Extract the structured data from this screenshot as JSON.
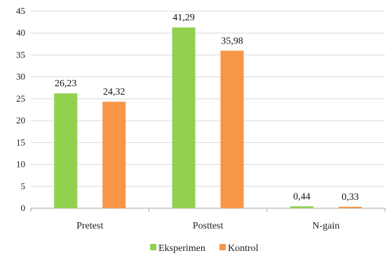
{
  "chart_data": {
    "type": "bar",
    "title": "",
    "xlabel": "",
    "ylabel": "",
    "categories": [
      "Pretest",
      "Posttest",
      "N-gain"
    ],
    "series": [
      {
        "name": "Eksperimen",
        "color": "#92d050",
        "values": [
          26.23,
          41.29,
          0.44
        ],
        "labels": [
          "26,23",
          "41,29",
          "0,44"
        ]
      },
      {
        "name": "Kontrol",
        "color": "#f79646",
        "values": [
          24.32,
          35.98,
          0.33
        ],
        "labels": [
          "24,32",
          "35,98",
          "0,33"
        ]
      }
    ],
    "ylim": [
      0,
      45
    ],
    "yticks": [
      0,
      5,
      10,
      15,
      20,
      25,
      30,
      35,
      40,
      45
    ],
    "grid": true,
    "legend": "bottom"
  }
}
